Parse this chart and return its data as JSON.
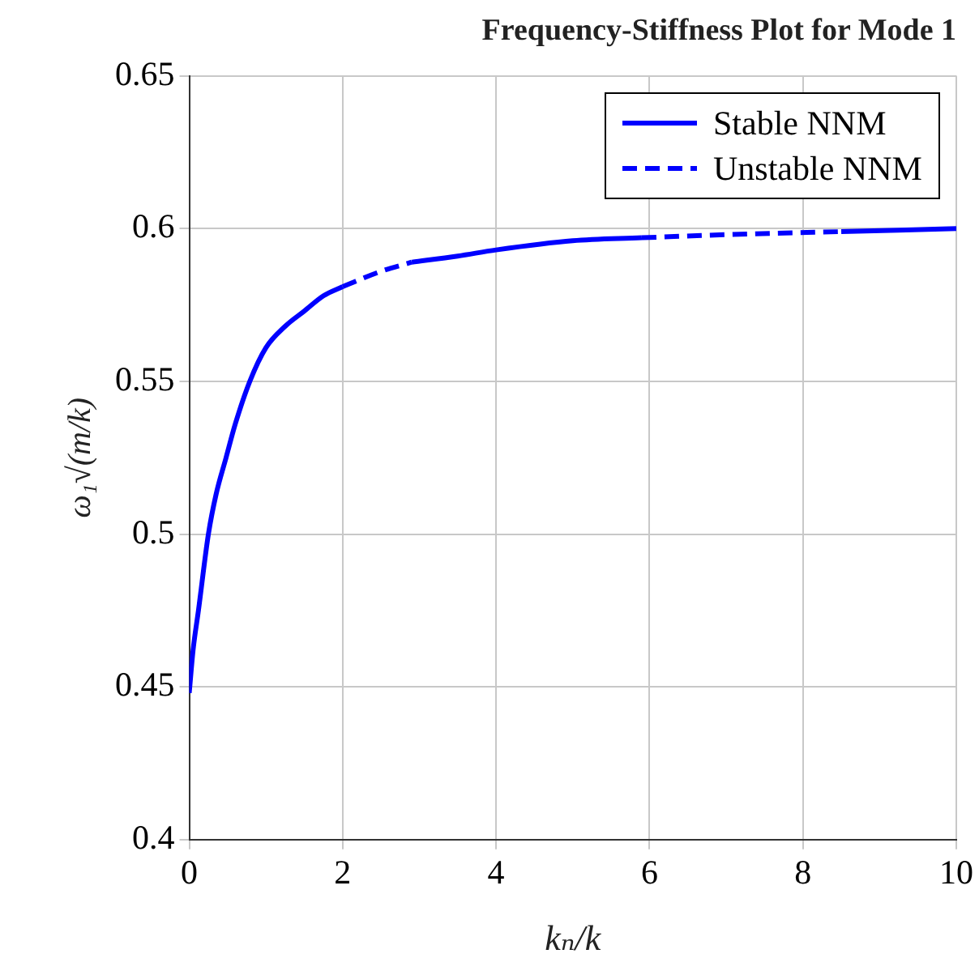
{
  "chart_data": {
    "type": "line",
    "title": "Frequency-Stiffness Plot for Mode 1",
    "xlabel": "kₙ/k",
    "ylabel": "ω₁√(m/k)",
    "x": [
      0,
      0.05,
      0.12,
      0.25,
      0.35,
      0.48,
      0.6,
      0.79,
      1,
      1.25,
      1.5,
      1.75,
      2,
      2.5,
      2.9,
      3.5,
      4,
      5,
      5.9,
      7,
      8.5,
      10
    ],
    "series": [
      {
        "name": "Stable NNM",
        "color": "#0000ff",
        "line_style": "solid",
        "values": [
          0.448,
          0.462,
          0.475,
          0.5,
          0.513,
          0.525,
          0.536,
          0.55,
          0.561,
          0.568,
          0.573,
          0.578,
          0.581,
          null,
          0.589,
          0.591,
          0.593,
          0.596,
          0.597,
          null,
          0.599,
          0.6
        ]
      },
      {
        "name": "Unstable NNM",
        "color": "#0000fe",
        "line_style": "dashed",
        "values": [
          null,
          null,
          null,
          null,
          null,
          null,
          null,
          null,
          null,
          null,
          null,
          null,
          0.581,
          0.586,
          0.589,
          null,
          null,
          null,
          0.597,
          0.598,
          0.599,
          null
        ]
      }
    ],
    "xlim": [
      0,
      10
    ],
    "xticks": [
      0,
      2,
      4,
      6,
      8,
      10
    ],
    "ylim": [
      0.4,
      0.65
    ],
    "yticks": [
      0.4,
      0.45,
      0.5,
      0.55,
      0.6,
      0.65
    ],
    "grid": true,
    "legend": "top right",
    "marker": "none"
  }
}
